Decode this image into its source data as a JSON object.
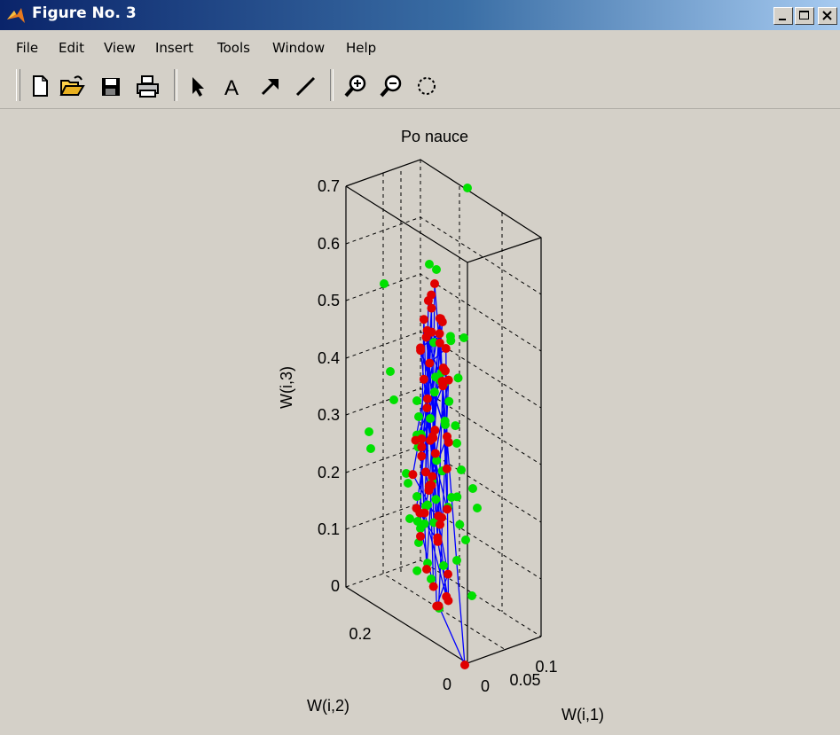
{
  "window": {
    "title": "Figure No. 3",
    "controls": [
      "minimize",
      "maximize",
      "close"
    ]
  },
  "menu": [
    "File",
    "Edit",
    "View",
    "Insert",
    "Tools",
    "Window",
    "Help"
  ],
  "toolbar": [
    "new-file-icon",
    "open-folder-icon",
    "save-icon",
    "print-icon",
    "select-arrow-icon",
    "insert-text-icon",
    "insert-arrow-icon",
    "insert-line-icon",
    "zoom-in-icon",
    "zoom-out-icon",
    "rotate-3d-icon"
  ],
  "chart_data": {
    "type": "scatter",
    "projection": "3d",
    "title": "Po nauce",
    "xlabel": "W(i,1)",
    "ylabel": "W(i,2)",
    "zlabel": "W(i,3)",
    "xticks": [
      "0",
      "0.05",
      "0.1"
    ],
    "yticks": [
      "0",
      "0.2"
    ],
    "zticks": [
      "0",
      "0.1",
      "0.2",
      "0.3",
      "0.4",
      "0.5",
      "0.6",
      "0.7"
    ],
    "zlim": [
      0,
      0.7
    ],
    "grid": true,
    "box": true,
    "colors": {
      "green_points": "#00e000",
      "red_points": "#e00000",
      "lines": "#0000ff"
    }
  }
}
